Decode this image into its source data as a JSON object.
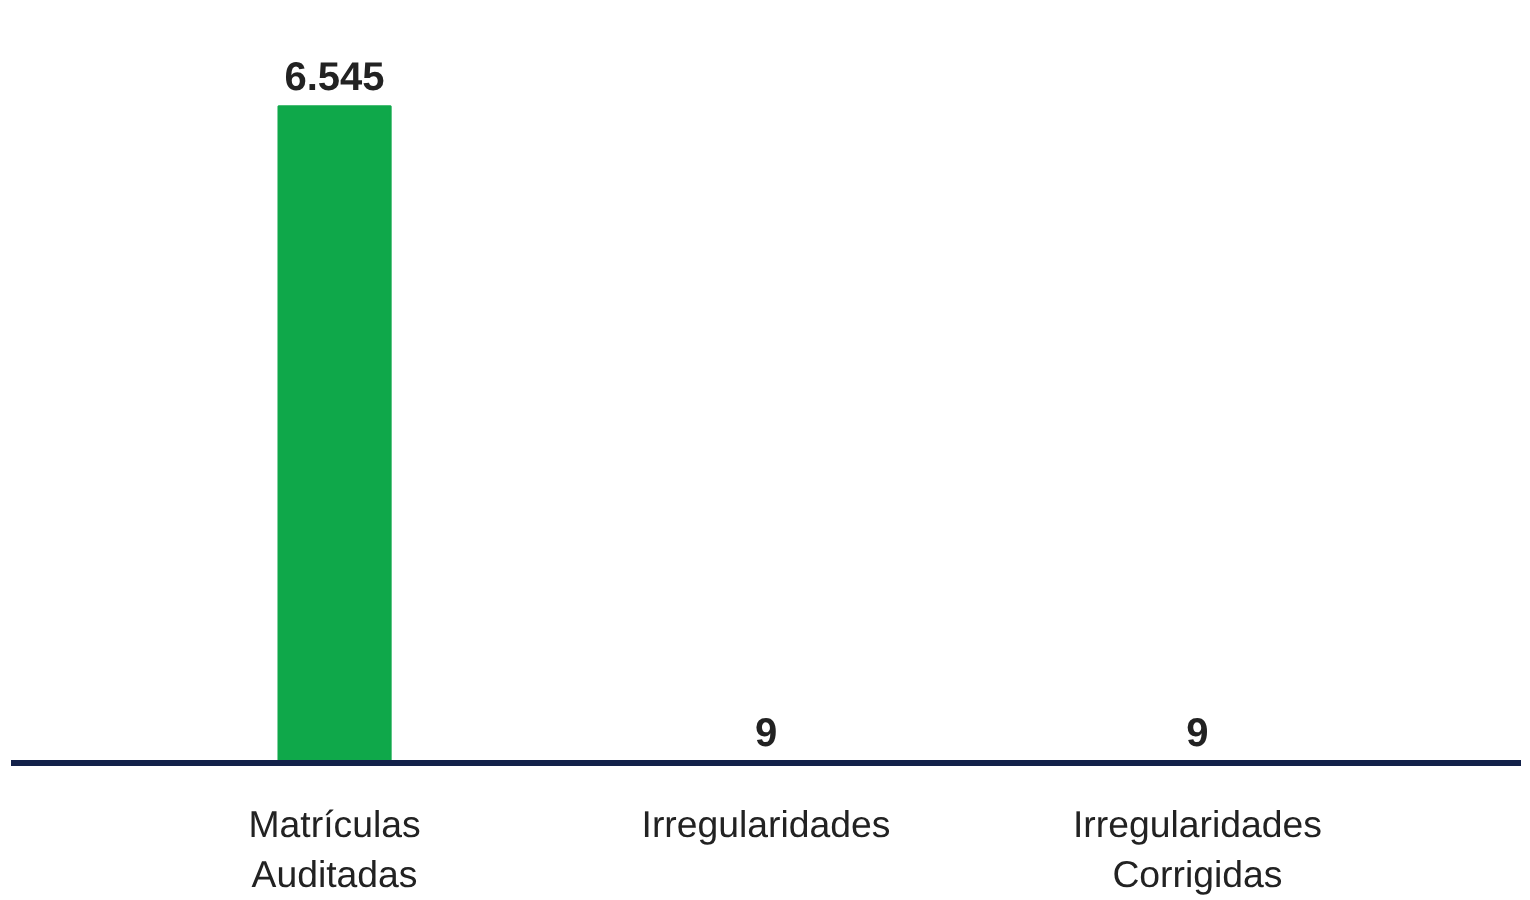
{
  "chart_data": {
    "type": "bar",
    "categories": [
      "Matrículas\nAuditadas",
      "Irregularidades",
      "Irregularidades\nCorrigidas"
    ],
    "values": [
      6545,
      9,
      9
    ],
    "value_labels": [
      "6.545",
      "9",
      "9"
    ],
    "color": "#0fa84a",
    "grid": false
  }
}
